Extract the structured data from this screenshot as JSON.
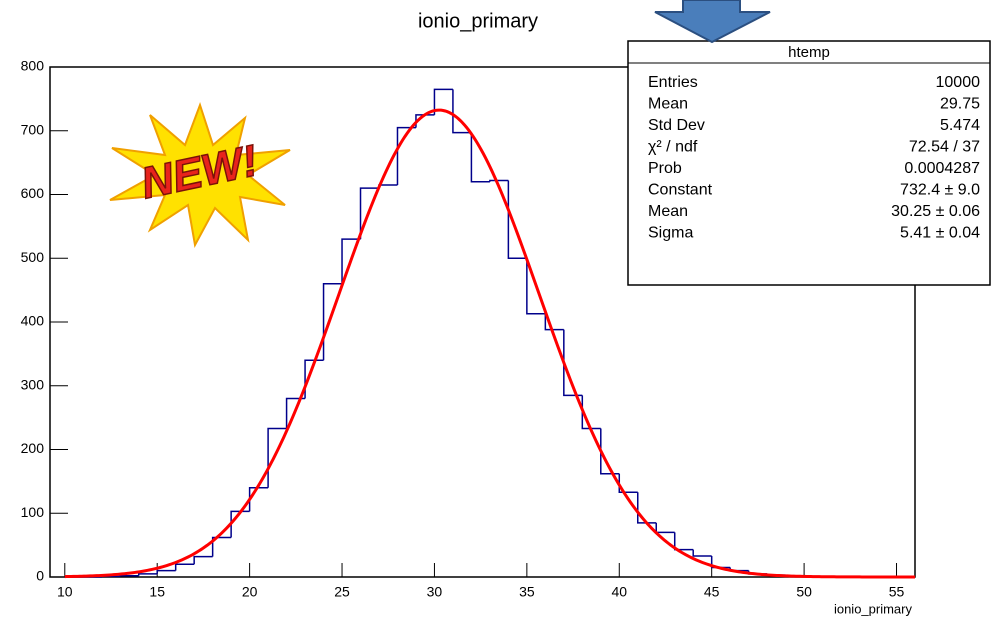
{
  "chart_data": {
    "type": "histogram",
    "title": "ionio_primary",
    "x_label": "ionio_primary",
    "bins": [
      10,
      11,
      12,
      13,
      14,
      15,
      16,
      17,
      18,
      19,
      20,
      21,
      22,
      23,
      24,
      25,
      26,
      27,
      28,
      29,
      30,
      31,
      32,
      33,
      34,
      35,
      36,
      37,
      38,
      39,
      40,
      41,
      42,
      43,
      44,
      45,
      46,
      47,
      48,
      49,
      50,
      51,
      52,
      53,
      54,
      55,
      56
    ],
    "values": [
      0,
      0,
      1,
      2,
      5,
      10,
      20,
      32,
      62,
      103,
      140,
      233,
      280,
      340,
      460,
      530,
      610,
      615,
      705,
      725,
      765,
      697,
      620,
      622,
      500,
      413,
      388,
      285,
      233,
      162,
      133,
      85,
      70,
      43,
      33,
      15,
      10,
      5,
      3,
      2,
      1,
      0,
      0,
      0,
      0,
      0
    ],
    "color": "#00008b",
    "fit_color": "#ff0000",
    "xlim": [
      9.2,
      56
    ],
    "ylim": [
      0,
      800
    ],
    "xticks": [
      10,
      15,
      20,
      25,
      30,
      35,
      40,
      45,
      50,
      55
    ],
    "yticks": [
      0,
      100,
      200,
      300,
      400,
      500,
      600,
      700,
      800
    ],
    "stats": {
      "title": "htemp",
      "rows": [
        {
          "name": "Entries",
          "value": 10000
        },
        {
          "name": "Mean",
          "value": 29.75
        },
        {
          "name": "Std Dev",
          "value": 5.474
        },
        {
          "name": "χ² / ndf",
          "value": "72.54 / 37"
        },
        {
          "name": "Prob",
          "value": 0.0004287
        },
        {
          "name": "Constant",
          "value": {
            "value": 732.4,
            "error": 9.0,
            "label": "732.4 ± 9.0"
          }
        },
        {
          "name": "Mean",
          "value": {
            "value": 30.25,
            "error": 0.06,
            "label": "30.25 ± 0.06"
          }
        },
        {
          "name": "Sigma",
          "value": {
            "value": 5.41,
            "error": 0.04,
            "label": "5.41 ± 0.04"
          }
        }
      ]
    },
    "badge": "NEW!"
  }
}
